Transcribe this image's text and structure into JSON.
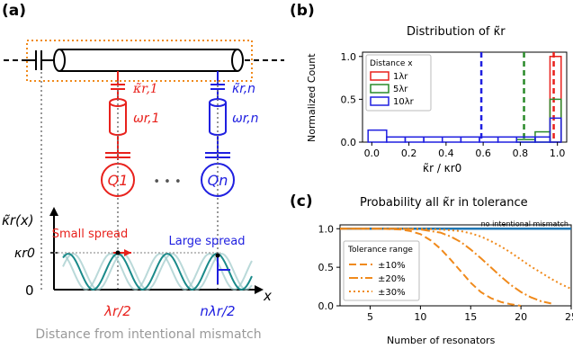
{
  "panel_labels": {
    "a": "(a)",
    "b": "(b)",
    "c": "(c)"
  },
  "panel_a": {
    "kappa_r1": "κ̃r,1",
    "kappa_rn": "κ̃r,n",
    "omega_r1": "ωr,1",
    "omega_rn": "ωr,n",
    "q1": "Q1",
    "qn": "Qn",
    "dots": "• • •",
    "plot_ylabel": "κ̃r(x)",
    "plot_xlabel": "x",
    "kappa_r0": "κr0",
    "zero": "0",
    "small_spread": "Small spread",
    "large_spread": "Large spread",
    "tick_lambda_half": "λr/2",
    "tick_n_lambda_half": "nλr/2",
    "caption": "Distance from intentional mismatch",
    "colors": {
      "red": "#e8211c",
      "blue": "#1f1fe0",
      "teal": "#1a8a8a",
      "orange": "#f08a1c"
    }
  },
  "panel_b": {
    "title": "Distribution of κ̃r",
    "ylabel": "Normalized Count",
    "xlabel": "κ̃r / κr0",
    "legend_title": "Distance x",
    "legend_entries": [
      "1λr",
      "5λr",
      "10λr"
    ]
  },
  "panel_c": {
    "title": "Probability all κ̃r in tolerance",
    "xlabel": "Number of resonators",
    "no_mismatch_label": "no intentional mismatch",
    "legend_title": "Tolerance range",
    "legend_entries": [
      "±10%",
      "±20%",
      "±30%"
    ]
  },
  "chart_data": [
    {
      "type": "bar",
      "panel": "b",
      "xlim": [
        -0.05,
        1.05
      ],
      "ylim": [
        0,
        1.05
      ],
      "xticks": [
        "0.0",
        "0.2",
        "0.4",
        "0.6",
        "0.8",
        "1.0"
      ],
      "yticks": [
        "0.0",
        "0.5",
        "1.0"
      ],
      "bin_edges": [
        -0.02,
        0.08,
        0.18,
        0.28,
        0.38,
        0.48,
        0.58,
        0.68,
        0.78,
        0.88,
        0.96,
        1.02
      ],
      "series": [
        {
          "name": "1λr",
          "color": "#e8211c",
          "values": [
            0,
            0,
            0,
            0,
            0,
            0,
            0,
            0,
            0,
            0,
            1.0
          ],
          "mean_line": 0.98
        },
        {
          "name": "5λr",
          "color": "#2a8a2a",
          "values": [
            0,
            0,
            0,
            0,
            0,
            0,
            0,
            0,
            0.03,
            0.12,
            0.5
          ],
          "mean_line": 0.82
        },
        {
          "name": "10λr",
          "color": "#1f1fe0",
          "values": [
            0.14,
            0.06,
            0.06,
            0.06,
            0.06,
            0.06,
            0.06,
            0.06,
            0.06,
            0.06,
            0.28
          ],
          "mean_line": 0.59
        }
      ]
    },
    {
      "type": "line",
      "panel": "c",
      "xlim": [
        2,
        25
      ],
      "ylim": [
        0,
        1.05
      ],
      "xticks": [
        "5",
        "10",
        "15",
        "20",
        "25"
      ],
      "yticks": [
        "0.0",
        "0.5",
        "1.0"
      ],
      "series": [
        {
          "name": "no intentional mismatch",
          "color": "#1f77b4",
          "style": "solid",
          "x": [
            2,
            25
          ],
          "y": [
            1.0,
            1.0
          ]
        },
        {
          "name": "±10%",
          "color": "#f08a1c",
          "style": "dashed",
          "x": [
            2,
            6,
            8,
            9,
            10,
            11,
            12,
            13,
            14,
            15,
            16,
            17,
            18,
            19,
            20
          ],
          "y": [
            1.0,
            1.0,
            0.99,
            0.97,
            0.93,
            0.85,
            0.74,
            0.6,
            0.45,
            0.3,
            0.18,
            0.1,
            0.05,
            0.02,
            0.0
          ]
        },
        {
          "name": "±20%",
          "color": "#f08a1c",
          "style": "dashdot",
          "x": [
            2,
            8,
            10,
            12,
            13,
            14,
            15,
            16,
            17,
            18,
            19,
            20,
            21,
            22,
            23
          ],
          "y": [
            1.0,
            1.0,
            0.99,
            0.95,
            0.9,
            0.83,
            0.73,
            0.62,
            0.5,
            0.38,
            0.27,
            0.18,
            0.11,
            0.06,
            0.03
          ]
        },
        {
          "name": "±30%",
          "color": "#f08a1c",
          "style": "dotted",
          "x": [
            2,
            10,
            12,
            14,
            15,
            16,
            17,
            18,
            19,
            20,
            21,
            22,
            23,
            24,
            25
          ],
          "y": [
            1.0,
            1.0,
            0.99,
            0.97,
            0.94,
            0.9,
            0.84,
            0.77,
            0.69,
            0.6,
            0.51,
            0.43,
            0.35,
            0.28,
            0.22
          ]
        }
      ]
    }
  ]
}
